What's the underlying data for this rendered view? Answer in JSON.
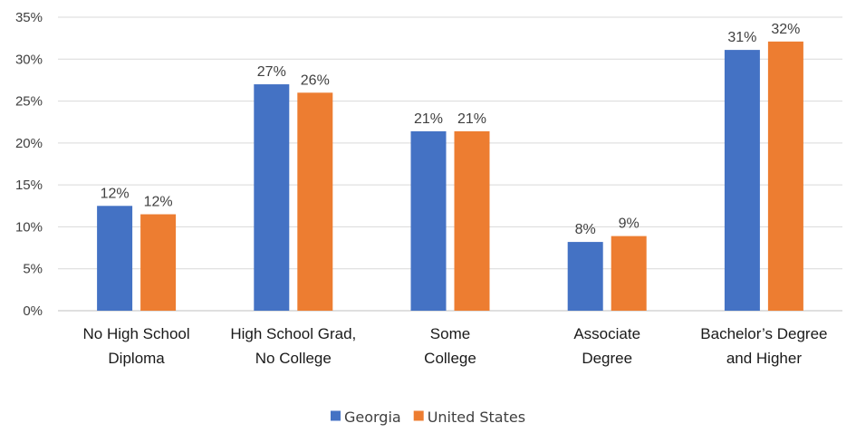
{
  "chart_data": {
    "type": "bar",
    "categories": [
      [
        "No High School",
        "Diploma"
      ],
      [
        "High School Grad,",
        "No College"
      ],
      [
        "Some",
        "College"
      ],
      [
        "Associate",
        "Degree"
      ],
      [
        "Bachelor’s Degree",
        "and Higher"
      ]
    ],
    "series": [
      {
        "name": "Georgia",
        "color": "#4472C4",
        "values": [
          12.5,
          27,
          21.4,
          8.2,
          31.1
        ],
        "labels": [
          "12%",
          "27%",
          "21%",
          "8%",
          "31%"
        ]
      },
      {
        "name": "United States",
        "color": "#ED7D31",
        "values": [
          11.5,
          26,
          21.4,
          8.9,
          32.1
        ],
        "labels": [
          "12%",
          "26%",
          "21%",
          "9%",
          "32%"
        ]
      }
    ],
    "ylim": [
      0,
      35
    ],
    "yticks": [
      0,
      5,
      10,
      15,
      20,
      25,
      30,
      35
    ],
    "ytick_labels": [
      "0%",
      "5%",
      "10%",
      "15%",
      "20%",
      "25%",
      "30%",
      "35%"
    ],
    "grid": true,
    "legend": "bottom",
    "title": "",
    "xlabel": "",
    "ylabel": ""
  }
}
